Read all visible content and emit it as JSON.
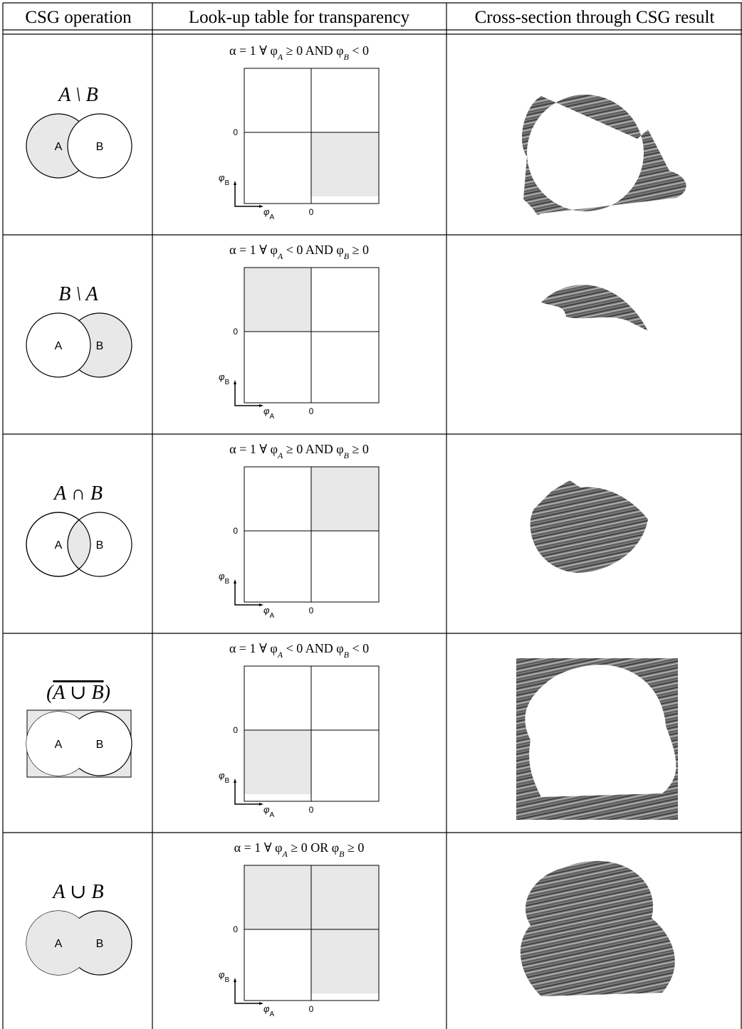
{
  "header": {
    "columns": [
      "CSG operation",
      "Look-up table for transparency",
      "Cross-section through CSG result"
    ]
  },
  "rows": [
    {
      "operation": [
        "A \\ B"
      ],
      "venn_labels": [
        "A",
        "B"
      ],
      "condition": [
        "α = 1 ∀ φ",
        "A",
        " ≥ 0 AND φ",
        "B",
        " < 0"
      ],
      "y_zero": "0",
      "y_label": [
        "φ",
        "B"
      ],
      "x_label": [
        "φ",
        "A"
      ],
      "x_zero": "0"
    },
    {
      "operation": [
        "B \\ A"
      ],
      "venn_labels": [
        "A",
        "B"
      ],
      "condition": [
        "α = 1 ∀ φ",
        "A",
        " < 0 AND φ",
        "B",
        " ≥ 0"
      ],
      "y_zero": "0",
      "y_label": [
        "φ",
        "B"
      ],
      "x_label": [
        "φ",
        "A"
      ],
      "x_zero": "0"
    },
    {
      "operation": [
        "A ∩ B"
      ],
      "venn_labels": [
        "A",
        "B"
      ],
      "condition": [
        "α = 1 ∀ φ",
        "A",
        " ≥ 0 AND φ",
        "B",
        " ≥ 0"
      ],
      "y_zero": "0",
      "y_label": [
        "φ",
        "B"
      ],
      "x_label": [
        "φ",
        "A"
      ],
      "x_zero": "0"
    },
    {
      "operation": [
        "(",
        "A ∪ B",
        ")"
      ],
      "venn_labels": [
        "A",
        "B"
      ],
      "condition": [
        "α = 1 ∀ φ",
        "A",
        " < 0 AND φ",
        "B",
        " < 0"
      ],
      "y_zero": "0",
      "y_label": [
        "φ",
        "B"
      ],
      "x_label": [
        "φ",
        "A"
      ],
      "x_zero": "0"
    },
    {
      "operation": [
        "A ∪ B"
      ],
      "venn_labels": [
        "A",
        "B"
      ],
      "condition": [
        "α = 1 ∀ φ",
        "A",
        " ≥ 0 OR φ",
        "B",
        " ≥ 0"
      ],
      "y_zero": "0",
      "y_label": [
        "φ",
        "B"
      ],
      "x_label": [
        "φ",
        "A"
      ],
      "x_zero": "0"
    }
  ]
}
